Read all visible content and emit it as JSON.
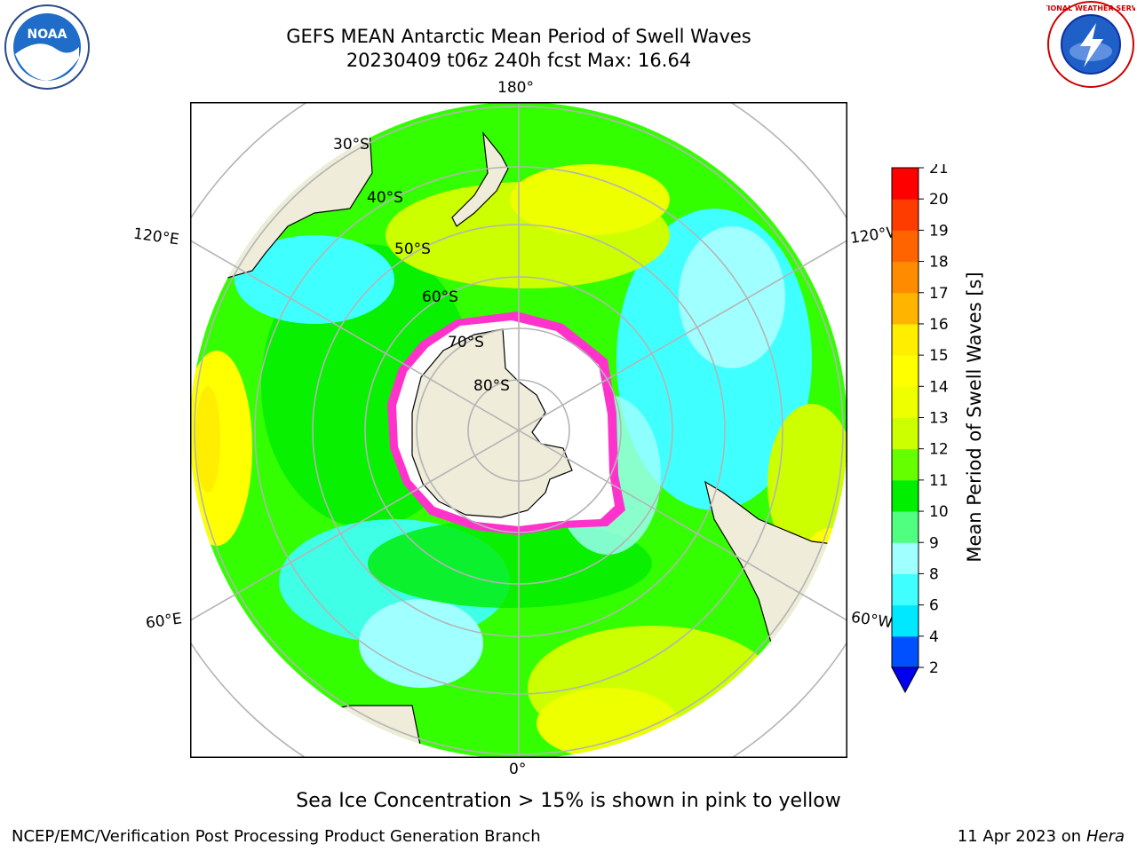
{
  "title": {
    "line1": "GEFS MEAN Antarctic Mean Period of Swell Waves",
    "line2": "20230409 t06z 240h fcst   Max: 16.64"
  },
  "map": {
    "longitude_labels": {
      "top": "180°",
      "bottom": "0°",
      "left_upper": "120°E",
      "right_upper": "120°W",
      "left_lower": "60°E",
      "right_lower": "60°W"
    },
    "latitude_labels": [
      "30°S",
      "40°S",
      "50°S",
      "60°S",
      "70°S",
      "80°S"
    ],
    "colors": {
      "ocean_green": "#33ff00",
      "land": "#efecda",
      "ice_edge": "#ff33cc"
    }
  },
  "colorbar": {
    "label": "Mean Period of Swell Waves [s]",
    "ticks": [
      "2",
      "4",
      "6",
      "8",
      "9",
      "10",
      "11",
      "12",
      "13",
      "14",
      "15",
      "16",
      "17",
      "18",
      "19",
      "20",
      "21"
    ],
    "colors": [
      "#0050ff",
      "#00e8ff",
      "#40ffff",
      "#a0ffff",
      "#50ff80",
      "#00ee00",
      "#66ff00",
      "#ccff00",
      "#eeff00",
      "#ffff00",
      "#ffee00",
      "#ffb400",
      "#ff8c00",
      "#ff6400",
      "#ff3c00",
      "#ff0000"
    ],
    "extend_color": "#0000ee"
  },
  "caption": "Sea Ice Concentration > 15% is shown in pink to yellow",
  "footer": {
    "left": "NCEP/EMC/Verification Post Processing Product Generation Branch",
    "right_prefix": "11 Apr 2023 on ",
    "right_machine": "Hera"
  },
  "logos": {
    "noaa": "NOAA",
    "nws": "NATIONAL WEATHER SERVICE"
  }
}
